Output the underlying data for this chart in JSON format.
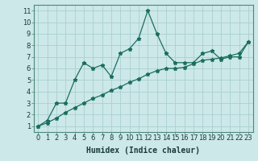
{
  "title": "",
  "xlabel": "Humidex (Indice chaleur)",
  "bg_color": "#cce8e8",
  "grid_color": "#aacfcf",
  "line_color": "#1a6e5e",
  "xlim": [
    -0.5,
    23.5
  ],
  "ylim": [
    0.5,
    11.5
  ],
  "xticks": [
    0,
    1,
    2,
    3,
    4,
    5,
    6,
    7,
    8,
    9,
    10,
    11,
    12,
    13,
    14,
    15,
    16,
    17,
    18,
    19,
    20,
    21,
    22,
    23
  ],
  "yticks": [
    1,
    2,
    3,
    4,
    5,
    6,
    7,
    8,
    9,
    10,
    11
  ],
  "line1_x": [
    0,
    1,
    2,
    3,
    4,
    5,
    6,
    7,
    8,
    9,
    10,
    11,
    12,
    13,
    14,
    15,
    16,
    17,
    18,
    19,
    20,
    21,
    22,
    23
  ],
  "line1_y": [
    1.0,
    1.5,
    3.0,
    3.0,
    5.0,
    6.5,
    6.0,
    6.3,
    5.3,
    7.3,
    7.7,
    8.6,
    11.0,
    9.0,
    7.3,
    6.5,
    6.5,
    6.5,
    7.3,
    7.5,
    6.8,
    7.0,
    7.0,
    8.3
  ],
  "line2_x": [
    0,
    1,
    2,
    3,
    4,
    5,
    6,
    7,
    8,
    9,
    10,
    11,
    12,
    13,
    14,
    15,
    16,
    17,
    18,
    19,
    20,
    21,
    22,
    23
  ],
  "line2_y": [
    1.0,
    1.3,
    1.7,
    2.2,
    2.6,
    3.0,
    3.4,
    3.7,
    4.1,
    4.4,
    4.8,
    5.1,
    5.5,
    5.8,
    6.0,
    6.0,
    6.1,
    6.4,
    6.7,
    6.8,
    6.9,
    7.1,
    7.3,
    8.3
  ],
  "marker": "*",
  "markersize": 3.5,
  "linewidth": 0.9,
  "xlabel_fontsize": 7,
  "tick_fontsize": 6
}
